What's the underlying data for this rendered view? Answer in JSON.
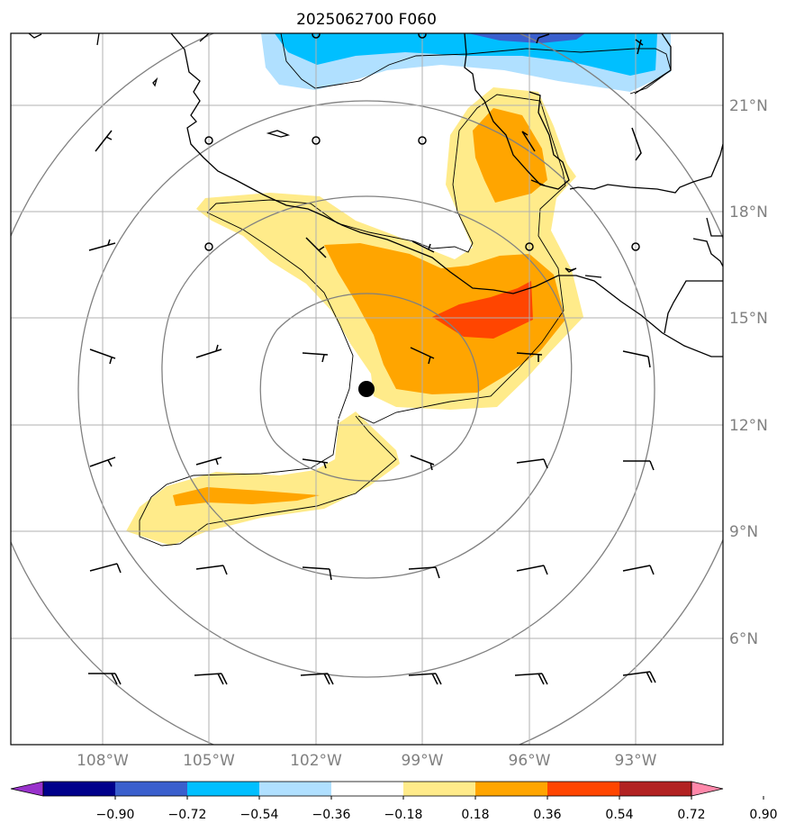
{
  "title": "2025062700 F060",
  "map": {
    "lon_range_deg": [
      -110.5,
      -90.5
    ],
    "lat_range_deg": [
      3.0,
      23.0
    ],
    "lat_ticks": [
      "21°N",
      "18°N",
      "15°N",
      "12°N",
      "9°N",
      "6°N"
    ],
    "lon_ticks": [
      "108°W",
      "105°W",
      "102°W",
      "99°W",
      "96°W",
      "93°W"
    ],
    "storm_center": {
      "lon_deg": -100.5,
      "lat_deg": 13.0
    },
    "range_rings": "concentric circles around storm center",
    "wind_barbs": "grid of wind barbs every 3 degrees",
    "colors": {
      "coastline": "#000000",
      "gridlines": "#b0b0b0",
      "rings": "#808080"
    }
  },
  "colorbar": {
    "labels": [
      "−0.90",
      "−0.72",
      "−0.54",
      "−0.36",
      "−0.18",
      "0.18",
      "0.36",
      "0.54",
      "0.72",
      "0.90"
    ],
    "colors": [
      "#9932cc",
      "#00008b",
      "#3a5fcd",
      "#00bfff",
      "#b0e0ff",
      "#ffffff",
      "#ffeb8a",
      "#ffa500",
      "#ff4500",
      "#b22222",
      "#ff88aa"
    ]
  },
  "fills": {
    "blue_light": "#b0e0ff",
    "blue_mid": "#00bfff",
    "blue_dark": "#3a5fcd",
    "yellow": "#ffeb8a",
    "orange": "#ffa500",
    "red": "#ff4500"
  }
}
